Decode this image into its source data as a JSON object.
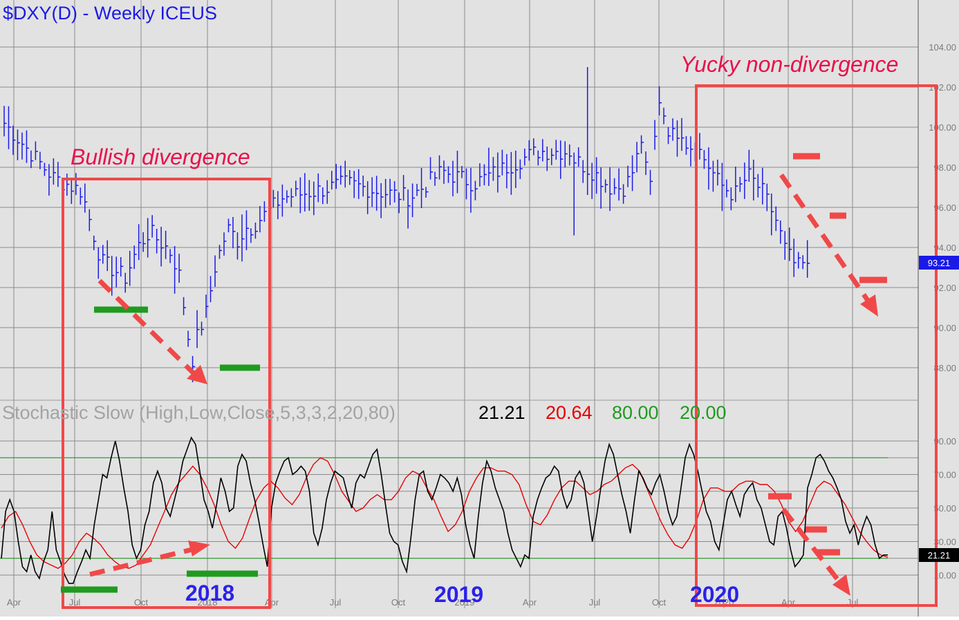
{
  "header": {
    "title": "$DXY(D) - Weekly  ICEUS"
  },
  "colors": {
    "background": "#e2e2e2",
    "grid": "#8a8a8a",
    "price": "#1a1ae6",
    "stoch_k": "#000000",
    "stoch_d": "#e60000",
    "level": "#1f9b1f",
    "annotation": "#f04848",
    "annotation_text": "#e8114b",
    "support": "#1f9b1f",
    "year_label": "#2a22e8"
  },
  "chart_data": [
    {
      "type": "bar",
      "name": "$DXY(D) - Weekly  ICEUS",
      "ylim": [
        86,
        104.5
      ],
      "yticks": [
        "104.00",
        "102.00",
        "100.00",
        "98.00",
        "96.00",
        "94.00",
        "92.00",
        "90.00",
        "88.00"
      ],
      "ytick_values": [
        104,
        102,
        100,
        98,
        96,
        94,
        92,
        90,
        88
      ],
      "xticks": [
        "Apr",
        "Jul",
        "Oct",
        "2018",
        "Apr",
        "Jul",
        "Oct",
        "2019",
        "Apr",
        "Jul",
        "Oct",
        "2020",
        "Apr",
        "Jul"
      ],
      "last_value_label": "93.21",
      "last_value": 93.21,
      "close_path_t": [
        0,
        0.2,
        0.32,
        0.4,
        0.5,
        0.55,
        0.6,
        0.64,
        0.68,
        0.72,
        0.74,
        0.755,
        0.78,
        0.8,
        0.83,
        0.87,
        0.9,
        0.93,
        0.96,
        1
      ],
      "close_path_v": [
        100.2,
        97.5,
        96.8,
        93.3,
        92.5,
        94.0,
        94.8,
        94.3,
        93.9,
        92.8,
        91.2,
        89.8,
        88.3,
        89.8,
        90.5,
        93.0,
        94.2,
        95.0,
        94.3,
        95.0
      ],
      "close_path_t2": [
        0,
        0.1,
        0.2,
        0.3,
        0.4,
        0.5,
        0.6,
        0.7,
        0.8,
        0.9,
        1
      ],
      "close_path_v2": [
        95.0,
        96.5,
        96.8,
        97.2,
        96.8,
        96.5,
        97.8,
        97.2,
        98.0,
        98.8,
        98.8
      ],
      "close_path_t3": [
        0,
        0.15,
        0.3,
        0.42,
        0.5,
        0.56,
        0.62,
        0.7,
        0.8,
        0.88,
        0.94,
        1
      ],
      "close_path_v3": [
        98.4,
        97.8,
        97.0,
        97.0,
        98.0,
        99.5,
        96.5,
        101.5,
        99.5,
        100.0,
        99.0,
        99.2
      ],
      "close_path_t4": [
        0,
        0.18,
        0.32,
        0.45,
        0.58,
        0.7,
        0.8,
        0.9,
        1
      ],
      "close_path_v4": [
        98.8,
        97.2,
        96.6,
        97.6,
        96.8,
        95.5,
        93.8,
        93.0,
        93.21
      ]
    },
    {
      "type": "line",
      "indicator_label": "Stochastic Slow (High,Low,Close,5,3,3,2,20,80)",
      "values_label": {
        "k": "21.21",
        "d": "20.64",
        "upper": "80.00",
        "lower": "20.00"
      },
      "ylim": [
        0,
        100
      ],
      "yticks": [
        "90.00",
        "70.00",
        "50.00",
        "30.00",
        "10.00"
      ],
      "ytick_values": [
        90,
        70,
        50,
        30,
        10
      ],
      "levels": [
        80,
        20
      ],
      "last_value_label": "21.21",
      "series": [
        {
          "role": "k",
          "values": [
            20,
            48,
            55,
            48,
            30,
            15,
            12,
            22,
            12,
            8,
            18,
            25,
            48,
            25,
            18,
            10,
            5,
            5,
            12,
            18,
            25,
            20,
            40,
            55,
            70,
            68,
            80,
            90,
            78,
            62,
            48,
            28,
            20,
            25,
            40,
            48,
            65,
            72,
            65,
            50,
            45,
            55,
            65,
            78,
            85,
            92,
            88,
            72,
            55,
            48,
            38,
            52,
            68,
            60,
            48,
            50,
            75,
            82,
            78,
            65,
            55,
            42,
            28,
            15,
            50,
            65,
            72,
            78,
            80,
            70,
            72,
            75,
            72,
            60,
            35,
            28,
            38,
            55,
            65,
            72,
            70,
            68,
            58,
            50,
            65,
            70,
            68,
            75,
            82,
            85,
            70,
            52,
            35,
            30,
            28,
            18,
            12,
            32,
            55,
            70,
            72,
            60,
            55,
            62,
            70,
            68,
            65,
            60,
            68,
            58,
            40,
            28,
            20,
            45,
            65,
            78,
            72,
            62,
            55,
            48,
            35,
            25,
            20,
            15,
            22,
            20
          ],
          "values2": [
            45,
            55,
            62,
            68,
            70,
            75,
            72,
            58,
            50,
            55,
            68,
            72,
            65,
            48,
            30,
            45,
            62,
            78,
            88,
            82,
            70,
            58,
            48,
            35,
            55,
            72,
            68,
            62,
            58,
            65,
            70,
            60,
            48,
            40,
            45,
            62,
            80,
            88,
            82,
            72,
            60,
            48,
            42,
            30,
            25,
            40,
            55,
            60,
            52,
            45,
            58,
            62,
            65,
            55,
            50,
            40,
            30,
            28,
            45,
            48,
            38,
            25,
            15,
            18,
            22
          ],
          "values3": [
            62,
            70,
            80,
            82,
            78,
            72,
            68,
            62,
            55,
            42,
            35,
            40,
            28,
            38,
            45,
            40,
            28,
            20,
            22,
            22
          ]
        },
        {
          "role": "d",
          "values": [
            38,
            45,
            48,
            40,
            30,
            22,
            18,
            16,
            14,
            17,
            22,
            30,
            35,
            32,
            28,
            22,
            18,
            15,
            14,
            16,
            22,
            28,
            38,
            48,
            58,
            65,
            70,
            75,
            70,
            62,
            52,
            40,
            30,
            26,
            32,
            44,
            55,
            62,
            66,
            62,
            56,
            52,
            58,
            68,
            76,
            80,
            78,
            70,
            60,
            54,
            48,
            50,
            55,
            58,
            55,
            55,
            60,
            68,
            72,
            70,
            62,
            55,
            45,
            36,
            40,
            48,
            60,
            68,
            74,
            74,
            72,
            72,
            70,
            64,
            52,
            42,
            40,
            46,
            55,
            62,
            66,
            66,
            62,
            58,
            60,
            64,
            66,
            70,
            74,
            76,
            72,
            62,
            52,
            42,
            34,
            28,
            26,
            32,
            42,
            55,
            62,
            62,
            60,
            60,
            64,
            66,
            66,
            64,
            64,
            60,
            52,
            42,
            36,
            42,
            52,
            62,
            66,
            64,
            58,
            52,
            44,
            36,
            30,
            25,
            22,
            20.64
          ]
        }
      ]
    }
  ],
  "annotations": {
    "bullish": "Bullish divergence",
    "yucky": "Yucky non-divergence",
    "year_2018": "2018",
    "year_2019": "2019",
    "year_2020": "2020"
  }
}
